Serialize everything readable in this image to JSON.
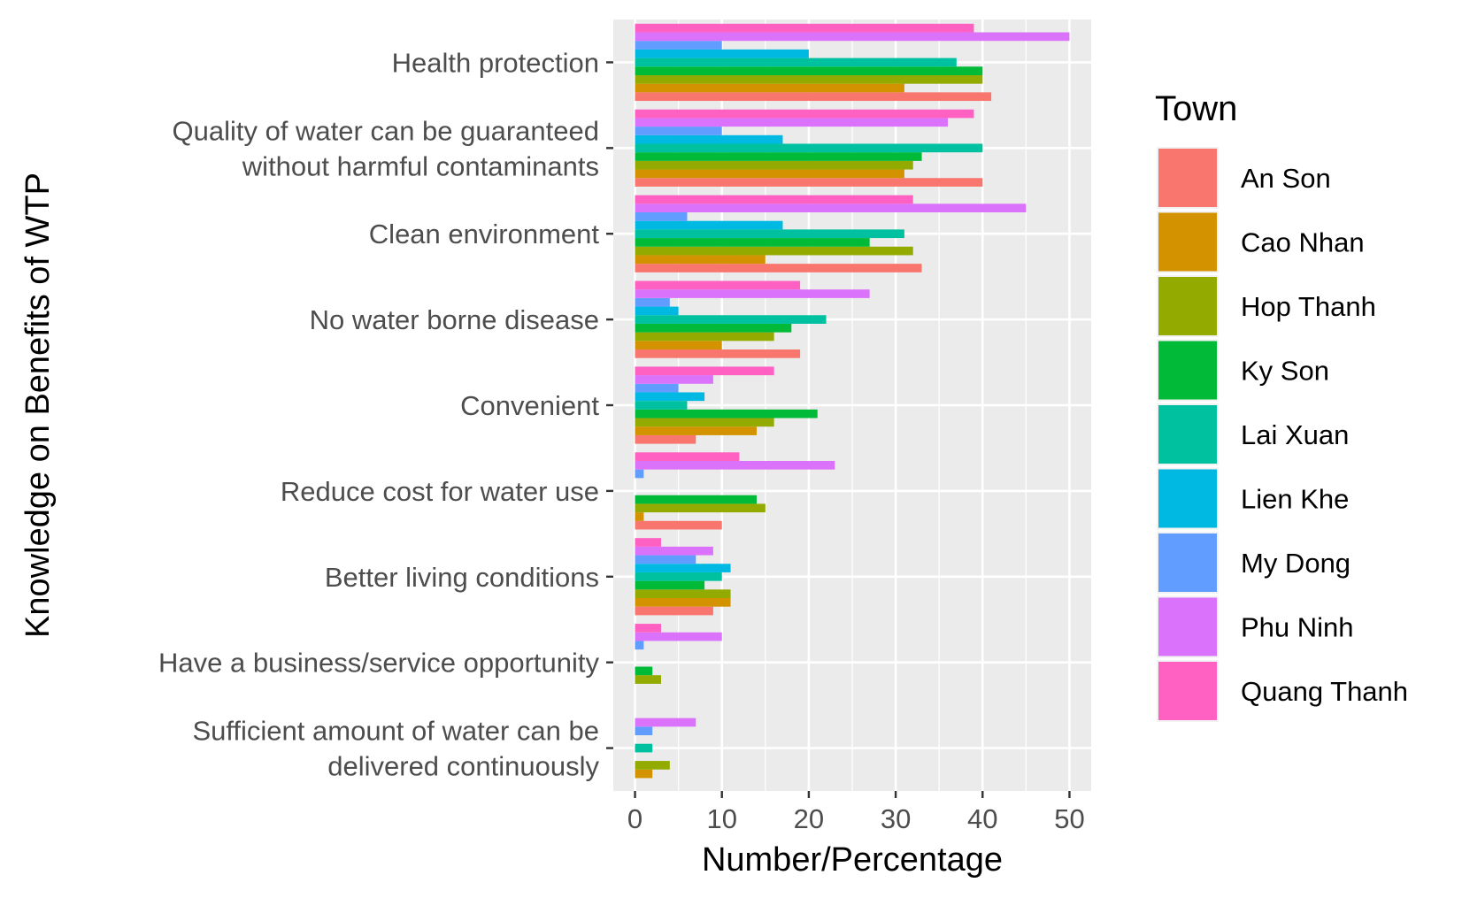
{
  "chart_data": {
    "type": "bar",
    "orientation": "horizontal",
    "xlabel": "Number/Percentage",
    "ylabel": "Knowledge on Benefits of WTP",
    "xlim": [
      -2.5,
      52.5
    ],
    "xticks": [
      0,
      10,
      20,
      30,
      40,
      50
    ],
    "grid": true,
    "legend": {
      "title": "Town",
      "placement": "right"
    },
    "categories": [
      [
        "Health protection"
      ],
      [
        "Quality of water can be guaranteed",
        "without harmful contaminants"
      ],
      [
        "Clean environment"
      ],
      [
        "No water borne disease"
      ],
      [
        "Convenient"
      ],
      [
        "Reduce cost for water use"
      ],
      [
        "Better living conditions"
      ],
      [
        "Have a business/service opportunity"
      ],
      [
        "Sufficient amount of water can be",
        "delivered continuously"
      ]
    ],
    "series": [
      {
        "name": "An Son",
        "color": "#F8766D",
        "values": [
          41,
          40,
          33,
          19,
          7,
          10,
          9,
          0,
          0
        ]
      },
      {
        "name": "Cao Nhan",
        "color": "#D39200",
        "values": [
          31,
          31,
          15,
          10,
          14,
          1,
          11,
          0,
          2
        ]
      },
      {
        "name": "Hop Thanh",
        "color": "#93AA00",
        "values": [
          40,
          32,
          32,
          16,
          16,
          15,
          11,
          3,
          4
        ]
      },
      {
        "name": "Ky Son",
        "color": "#00BA38",
        "values": [
          40,
          33,
          27,
          18,
          21,
          14,
          8,
          2,
          0
        ]
      },
      {
        "name": "Lai Xuan",
        "color": "#00C19F",
        "values": [
          37,
          40,
          31,
          22,
          6,
          0,
          10,
          0,
          2
        ]
      },
      {
        "name": "Lien Khe",
        "color": "#00B9E3",
        "values": [
          20,
          17,
          17,
          5,
          8,
          0,
          11,
          0,
          0
        ]
      },
      {
        "name": "My Dong",
        "color": "#619CFF",
        "values": [
          10,
          10,
          6,
          4,
          5,
          1,
          7,
          1,
          2
        ]
      },
      {
        "name": "Phu Ninh",
        "color": "#DB72FB",
        "values": [
          50,
          36,
          45,
          27,
          9,
          23,
          9,
          10,
          7
        ]
      },
      {
        "name": "Quang Thanh",
        "color": "#FF61C3",
        "values": [
          39,
          39,
          32,
          19,
          16,
          12,
          3,
          3,
          0
        ]
      }
    ]
  }
}
